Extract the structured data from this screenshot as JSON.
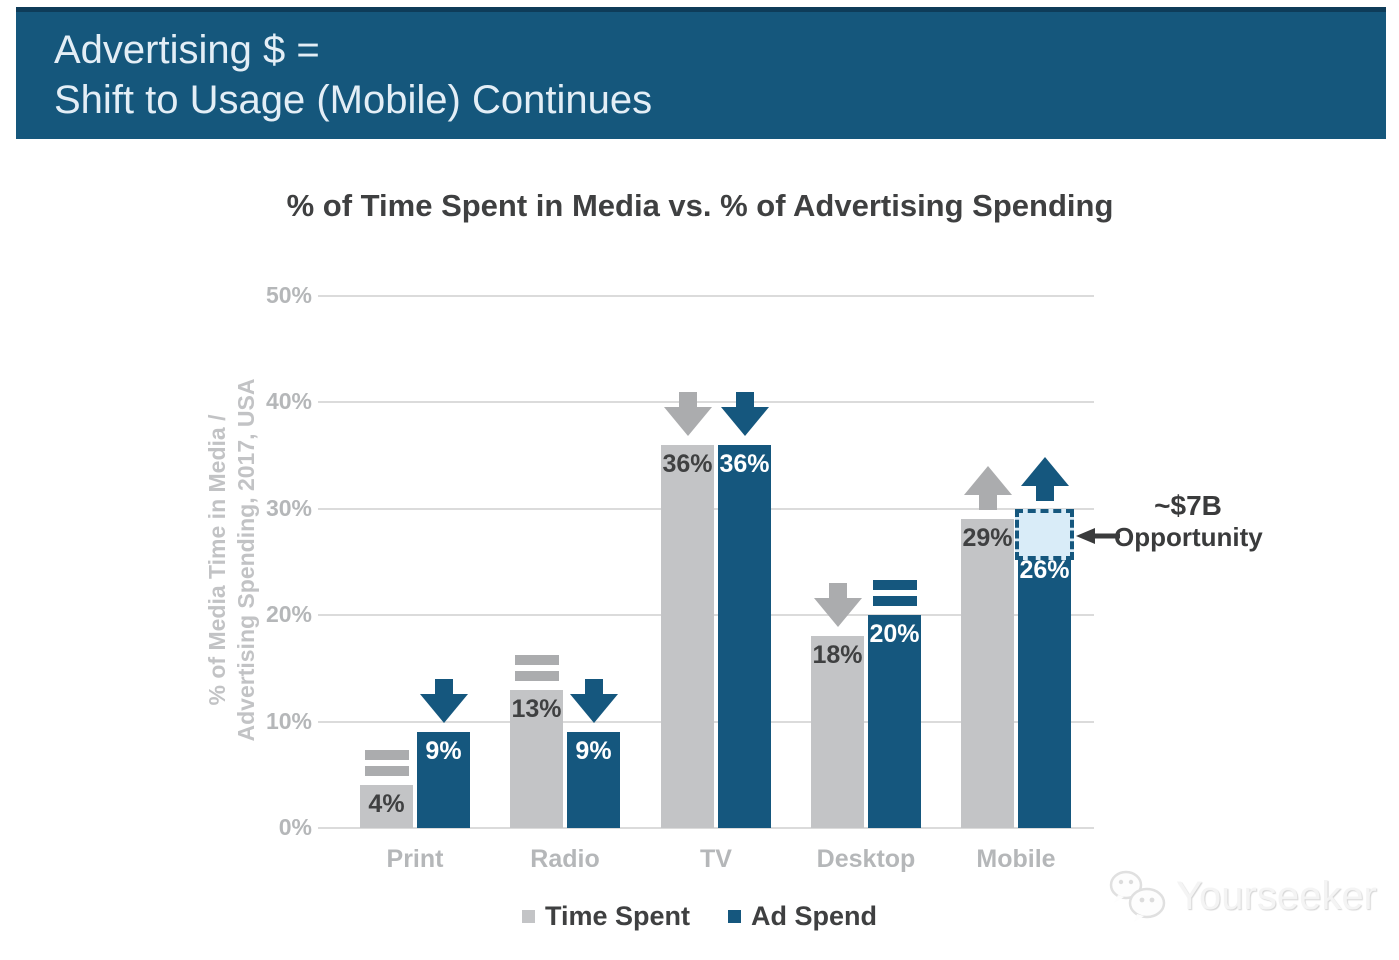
{
  "header": {
    "title_line1": "Advertising $ =",
    "title_line2": "Shift to Usage (Mobile) Continues"
  },
  "chart_data": {
    "type": "bar",
    "title": "% of Time Spent in Media vs. % of Advertising Spending",
    "ylabel": [
      "% of Media Time in Media /",
      "Advertising Spending, 2017, USA"
    ],
    "categories": [
      "Print",
      "Radio",
      "TV",
      "Desktop",
      "Mobile"
    ],
    "yticks": [
      "0%",
      "10%",
      "20%",
      "30%",
      "40%",
      "50%"
    ],
    "ylim": [
      0,
      50
    ],
    "grid": true,
    "legend_position": "bottom",
    "series": [
      {
        "name": "Time Spent",
        "values": [
          4,
          13,
          36,
          18,
          29
        ],
        "labels": [
          "4%",
          "13%",
          "36%",
          "18%",
          "29%"
        ],
        "color": "#c3c4c6",
        "label_color": "#3f4041",
        "trend_markers": [
          "equal",
          "equal",
          "down",
          "down",
          "up"
        ],
        "marker_color": "#abacae"
      },
      {
        "name": "Ad Spend",
        "values": [
          9,
          9,
          36,
          20,
          26
        ],
        "labels": [
          "9%",
          "9%",
          "36%",
          "20%",
          "26%"
        ],
        "color": "#15577e",
        "label_color": "#ffffff",
        "trend_markers": [
          "down",
          "down",
          "down",
          "equal",
          "up"
        ],
        "marker_color": "#15577e"
      }
    ],
    "annotation": {
      "label_line1": "~$7B",
      "label_line2": "Opportunity",
      "target_category": "Mobile",
      "target_series": "Ad Spend",
      "box_from_pct": 26,
      "box_to_pct": 30,
      "box_fill": "#d9ecf8",
      "box_border": "#15577e"
    }
  },
  "watermark": {
    "text": "Yourseeker"
  },
  "colors": {
    "header_bg": "#15577c",
    "header_top_edge": "#0e3c59",
    "header_text": "#e3eef6",
    "title_text": "#3f4041",
    "axis_text": "#b5b7b9",
    "gridline": "#dbdbdb",
    "annotation_text": "#3a3b3c"
  }
}
